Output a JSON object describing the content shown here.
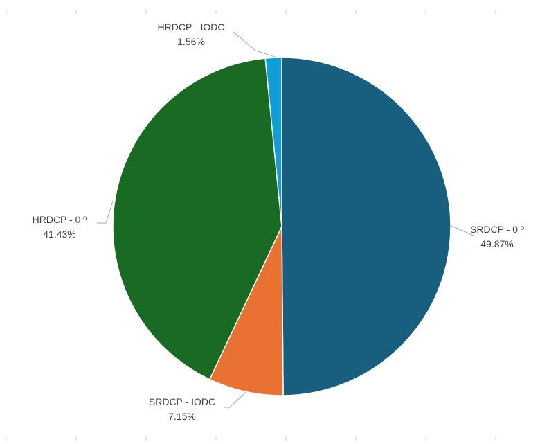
{
  "chart_data": {
    "type": "pie",
    "title": "",
    "start_angle_deg": 0,
    "direction": "clockwise",
    "slices": [
      {
        "label": "SRDCP - 0 º",
        "value": 49.87,
        "value_text": "49.87%",
        "color": "#175e7f"
      },
      {
        "label": "SRDCP - IODC",
        "value": 7.15,
        "value_text": "7.15%",
        "color": "#e97132"
      },
      {
        "label": "HRDCP - 0 º",
        "value": 41.43,
        "value_text": "41.43%",
        "color": "#196b24"
      },
      {
        "label": "HRDCP - IODC",
        "value": 1.56,
        "value_text": "1.56%",
        "color": "#0f9ed5"
      }
    ],
    "legend": "none",
    "data_labels": "outside with leader lines"
  }
}
